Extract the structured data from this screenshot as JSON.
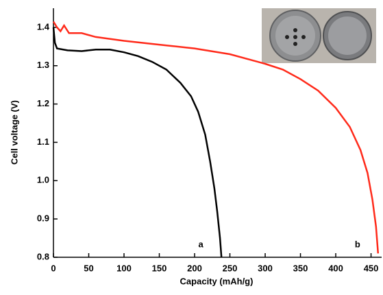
{
  "chart_data": {
    "type": "line",
    "xlabel": "Capacity (mAh/g)",
    "ylabel": "Cell voltage (V)",
    "xlim": [
      0,
      465
    ],
    "ylim": [
      0.8,
      1.45
    ],
    "xticks": [
      0,
      50,
      100,
      150,
      200,
      250,
      300,
      350,
      400,
      450
    ],
    "yticks": [
      0.8,
      0.9,
      {
        "value": 1,
        "label": "1.0"
      },
      1.1,
      1.2,
      1.3,
      1.4
    ],
    "series": [
      {
        "color": "#000000",
        "x": [
          0,
          2,
          5,
          20,
          40,
          60,
          80,
          100,
          120,
          140,
          160,
          180,
          195,
          205,
          215,
          222,
          228,
          232,
          236,
          238
        ],
        "values": [
          1.4,
          1.36,
          1.345,
          1.34,
          1.338,
          1.342,
          1.342,
          1.335,
          1.325,
          1.31,
          1.29,
          1.255,
          1.22,
          1.18,
          1.12,
          1.05,
          0.98,
          0.92,
          0.85,
          0.8
        ]
      },
      {
        "color": "#ff2a1a",
        "x": [
          0,
          5,
          10,
          15,
          22,
          40,
          60,
          100,
          150,
          200,
          250,
          300,
          325,
          350,
          375,
          400,
          420,
          435,
          445,
          452,
          457,
          460
        ],
        "values": [
          1.415,
          1.4,
          1.39,
          1.405,
          1.385,
          1.385,
          1.375,
          1.365,
          1.355,
          1.345,
          1.33,
          1.305,
          1.29,
          1.265,
          1.235,
          1.19,
          1.14,
          1.08,
          1.02,
          0.95,
          0.88,
          0.81
        ]
      }
    ],
    "annotations": [
      "a",
      "b"
    ]
  }
}
